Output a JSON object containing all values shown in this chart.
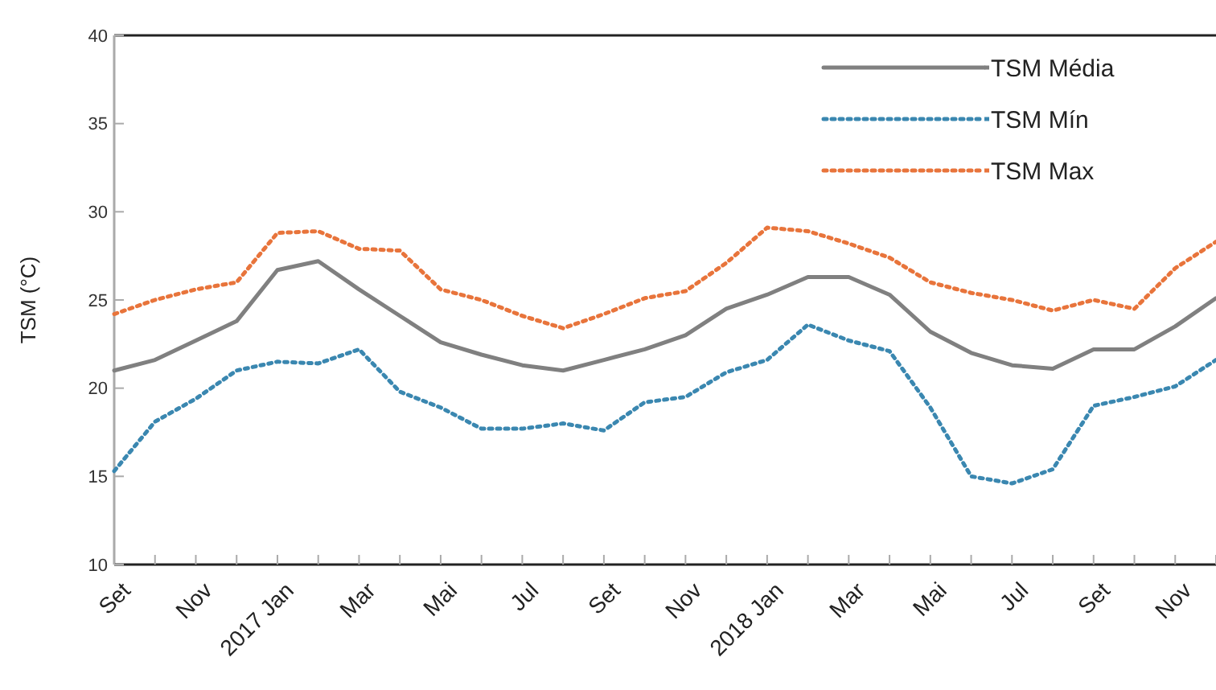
{
  "chart_data": {
    "type": "line",
    "ylabel": "TSM (°C)",
    "categories": [
      "Set",
      null,
      "Nov",
      null,
      "2017 Jan",
      null,
      "Mar",
      null,
      "Mai",
      null,
      "Jul",
      null,
      "Set",
      null,
      "Nov",
      null,
      "2018 Jan",
      null,
      "Mar",
      null,
      "Mai",
      null,
      "Jul",
      null,
      "Set",
      null,
      "Nov",
      null
    ],
    "ylim": [
      10,
      40
    ],
    "yticks": [
      10,
      15,
      20,
      25,
      30,
      35,
      40
    ],
    "grid": false,
    "legend": "top right",
    "marker": "none",
    "series": [
      {
        "name": "TSM Média",
        "color": "#808080",
        "line_style": "solid",
        "values": [
          21.0,
          21.6,
          22.7,
          23.8,
          26.7,
          27.2,
          25.6,
          24.1,
          22.6,
          21.9,
          21.3,
          21.0,
          21.6,
          22.2,
          23.0,
          24.5,
          25.3,
          26.3,
          26.3,
          25.3,
          23.2,
          22.0,
          21.3,
          21.1,
          22.2,
          22.2,
          23.5,
          25.1
        ]
      },
      {
        "name": "TSM Mín",
        "color": "#3a87b0",
        "line_style": "dotted",
        "values": [
          15.3,
          18.1,
          19.4,
          21.0,
          21.5,
          21.4,
          22.2,
          19.8,
          18.9,
          17.7,
          17.7,
          18.0,
          17.6,
          19.2,
          19.5,
          20.9,
          21.6,
          23.6,
          22.7,
          22.1,
          18.9,
          15.0,
          14.6,
          15.4,
          19.0,
          19.5,
          20.1,
          21.6
        ]
      },
      {
        "name": "TSM Max",
        "color": "#e8743b",
        "line_style": "dotted",
        "values": [
          24.2,
          25.0,
          25.6,
          26.0,
          28.8,
          28.9,
          27.9,
          27.8,
          25.6,
          25.0,
          24.1,
          23.4,
          24.2,
          25.1,
          25.5,
          27.1,
          29.1,
          28.9,
          28.2,
          27.4,
          26.0,
          25.4,
          25.0,
          24.4,
          25.0,
          24.5,
          26.8,
          28.3
        ]
      }
    ]
  }
}
